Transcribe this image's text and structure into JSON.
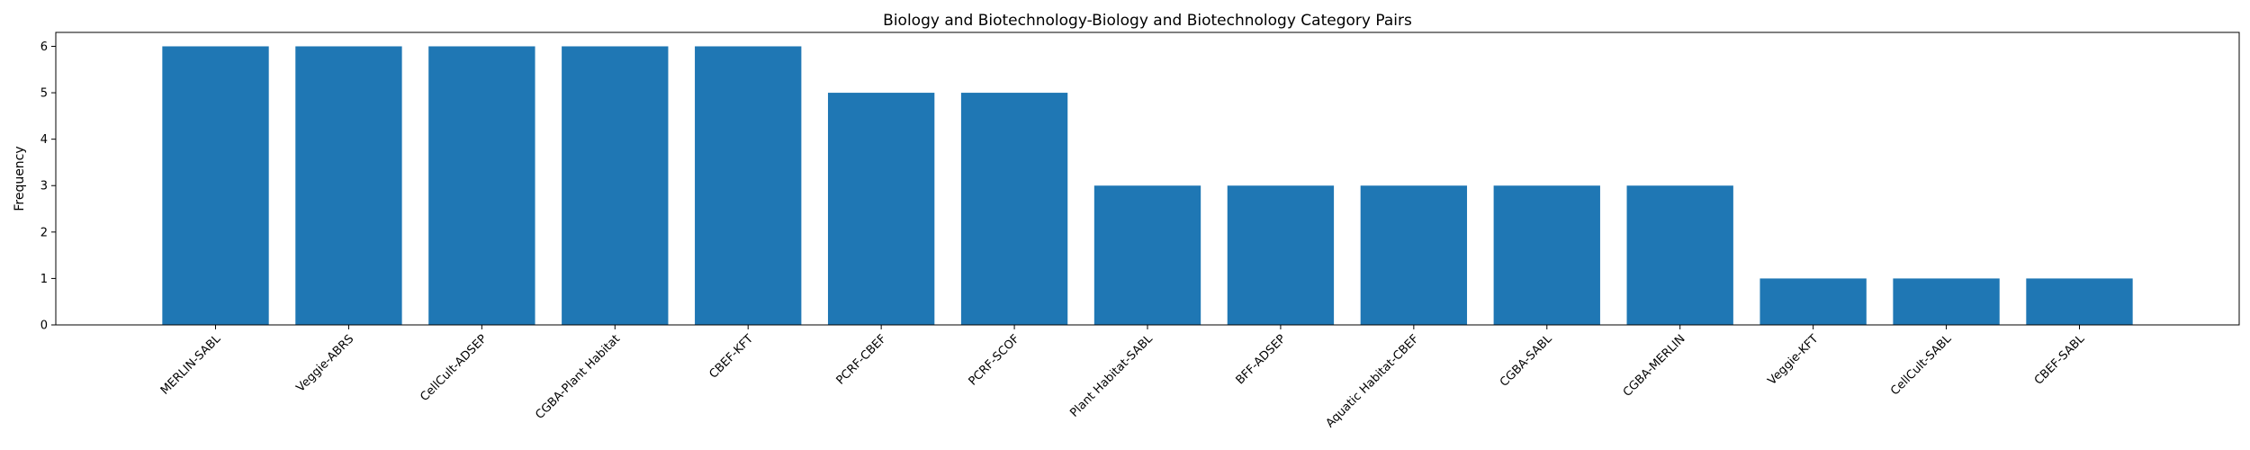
{
  "chart_data": {
    "type": "bar",
    "title": "Biology and Biotechnology-Biology and Biotechnology Category Pairs",
    "xlabel": "",
    "ylabel": "Frequency",
    "categories": [
      "MERLIN-SABL",
      "Veggie-ABRS",
      "CellCult-ADSEP",
      "CGBA-Plant Habitat",
      "CBEF-KFT",
      "PCRF-CBEF",
      "PCRF-SCOF",
      "Plant Habitat-SABL",
      "BFF-ADSEP",
      "Aquatic Habitat-CBEF",
      "CGBA-SABL",
      "CGBA-MERLIN",
      "Veggie-KFT",
      "CellCult-SABL",
      "CBEF-SABL"
    ],
    "values": [
      6,
      6,
      6,
      6,
      6,
      5,
      5,
      3,
      3,
      3,
      3,
      3,
      1,
      1,
      1
    ],
    "ylim": [
      0,
      6.3
    ],
    "yticks": [
      0,
      1,
      2,
      3,
      4,
      5,
      6
    ],
    "bar_color": "#1f77b4",
    "grid": false,
    "legend": "none"
  }
}
